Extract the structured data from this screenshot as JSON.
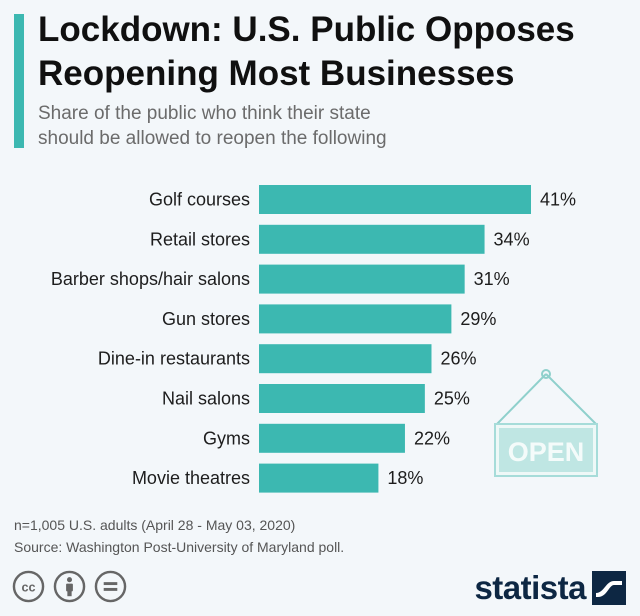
{
  "header": {
    "title_line1": "Lockdown: U.S. Public Opposes",
    "title_line2": "Reopening Most Businesses",
    "subtitle_line1": "Share of the public who think their state",
    "subtitle_line2": "should be allowed to reopen the following"
  },
  "chart_data": {
    "type": "bar",
    "orientation": "horizontal",
    "categories": [
      "Golf courses",
      "Retail stores",
      "Barber shops/hair salons",
      "Gun stores",
      "Dine-in restaurants",
      "Nail salons",
      "Gyms",
      "Movie theatres"
    ],
    "values": [
      41,
      34,
      31,
      29,
      26,
      25,
      22,
      18
    ],
    "value_labels": [
      "41%",
      "34%",
      "31%",
      "29%",
      "26%",
      "25%",
      "22%",
      "18%"
    ],
    "unit": "%",
    "bar_color": "#3cb8b1",
    "grid": false,
    "legend": "none"
  },
  "illustration": {
    "sign_text": "OPEN",
    "sign_color": "#a6dcd9"
  },
  "footer": {
    "note": "n=1,005 U.S. adults (April 28 - May 03, 2020)",
    "source": "Source: Washington Post-University of Maryland poll.",
    "brand": "statista",
    "brand_color": "#0d2743",
    "license_icons": [
      "cc-icon",
      "attribution-icon",
      "no-derivatives-icon"
    ]
  }
}
